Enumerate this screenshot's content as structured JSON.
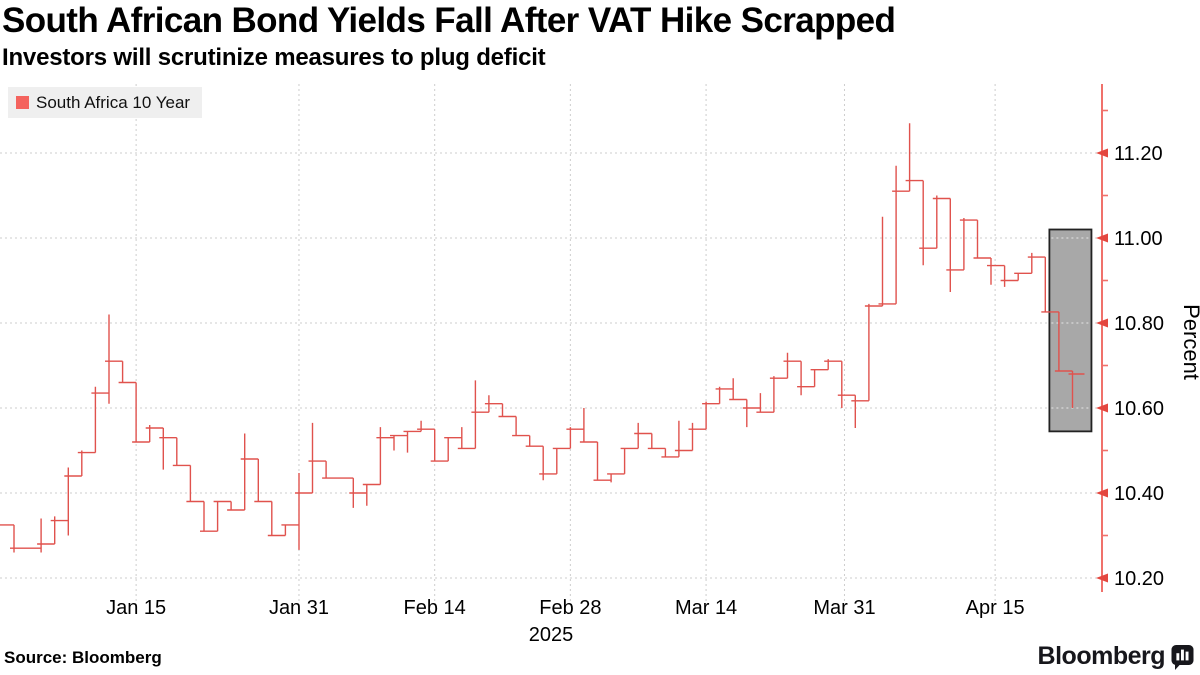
{
  "header": {
    "title": "South African Bond Yields Fall After VAT Hike Scrapped",
    "subtitle": "Investors will scrutinize measures to plug deficit"
  },
  "legend": {
    "label": "South Africa 10 Year"
  },
  "footer": {
    "source": "Source: Bloomberg",
    "brand": "Bloomberg"
  },
  "colors": {
    "line": "#e0524d",
    "axis": "#f0716b",
    "tick_arrow": "#e4473f",
    "grid": "#cdcdcd",
    "grid_in_box": "#e6e6e6",
    "box_fill": "#a8a8a8",
    "box_border": "#222222",
    "legend_bg": "#efefef",
    "swatch": "#f4635e",
    "text": "#000000"
  },
  "chart_data": {
    "type": "line",
    "subtype": "daily high-low step line",
    "title": "South African Bond Yields Fall After VAT Hike Scrapped",
    "ylabel": "Percent",
    "year_label": "2025",
    "legend": [
      "South Africa 10 Year"
    ],
    "grid": true,
    "y_axis": {
      "side": "right",
      "major_ticks": [
        11.2,
        11.0,
        10.8,
        10.6,
        10.4,
        10.2
      ],
      "minor_ticks": [
        11.3,
        11.1,
        10.9,
        10.7,
        10.5,
        10.3
      ],
      "top_value": 11.36,
      "bottom_value": 10.17
    },
    "x_ticks": [
      {
        "label": "Jan 15",
        "d": 9
      },
      {
        "label": "Jan 31",
        "d": 21
      },
      {
        "label": "Feb 14",
        "d": 31
      },
      {
        "label": "Feb 28",
        "d": 41
      },
      {
        "label": "Mar 14",
        "d": 51
      },
      {
        "label": "Mar 31",
        "d": 61.2
      },
      {
        "label": "Apr 15",
        "d": 72.3
      }
    ],
    "highlight_box": {
      "d_from": 76.3,
      "d_to": 79.4,
      "v_top": 11.02,
      "v_bottom": 10.545
    },
    "series": [
      {
        "name": "South Africa 10 Year",
        "unit": "Percent",
        "open": 10.325,
        "points": [
          {
            "c": 10.27,
            "l": 10.26
          },
          {
            "c": 10.27
          },
          {
            "c": 10.28,
            "h": 10.34,
            "l": 10.26
          },
          {
            "c": 10.335,
            "h": 10.345
          },
          {
            "c": 10.44,
            "h": 10.46,
            "l": 10.3
          },
          {
            "c": 10.495,
            "h": 10.5
          },
          {
            "c": 10.635,
            "h": 10.65
          },
          {
            "c": 10.71,
            "h": 10.82,
            "l": 10.61
          },
          {
            "c": 10.66
          },
          {
            "c": 10.52
          },
          {
            "c": 10.553,
            "h": 10.56
          },
          {
            "c": 10.53,
            "l": 10.455
          },
          {
            "c": 10.465
          },
          {
            "c": 10.38
          },
          {
            "c": 10.31
          },
          {
            "c": 10.38
          },
          {
            "c": 10.36
          },
          {
            "c": 10.48,
            "h": 10.54
          },
          {
            "c": 10.38
          },
          {
            "c": 10.3
          },
          {
            "c": 10.325
          },
          {
            "c": 10.4,
            "h": 10.447,
            "l": 10.266
          },
          {
            "c": 10.475,
            "h": 10.565
          },
          {
            "c": 10.435
          },
          {
            "c": 10.435
          },
          {
            "c": 10.4,
            "l": 10.365
          },
          {
            "c": 10.42,
            "l": 10.37
          },
          {
            "c": 10.53,
            "h": 10.555
          },
          {
            "c": 10.535,
            "l": 10.5
          },
          {
            "c": 10.545,
            "l": 10.495
          },
          {
            "c": 10.55,
            "h": 10.57
          },
          {
            "c": 10.475
          },
          {
            "c": 10.53
          },
          {
            "c": 10.505,
            "h": 10.555
          },
          {
            "c": 10.59,
            "h": 10.665
          },
          {
            "c": 10.61,
            "h": 10.63
          },
          {
            "c": 10.58
          },
          {
            "c": 10.535
          },
          {
            "c": 10.51
          },
          {
            "c": 10.445,
            "l": 10.43
          },
          {
            "c": 10.505
          },
          {
            "c": 10.55,
            "h": 10.555
          },
          {
            "c": 10.52,
            "h": 10.6
          },
          {
            "c": 10.43
          },
          {
            "c": 10.445,
            "l": 10.425
          },
          {
            "c": 10.505
          },
          {
            "c": 10.54,
            "h": 10.565
          },
          {
            "c": 10.505
          },
          {
            "c": 10.485
          },
          {
            "c": 10.5,
            "h": 10.57
          },
          {
            "c": 10.55,
            "h": 10.565
          },
          {
            "c": 10.61,
            "h": 10.615
          },
          {
            "c": 10.645,
            "h": 10.65
          },
          {
            "c": 10.62,
            "h": 10.67
          },
          {
            "c": 10.6,
            "l": 10.555
          },
          {
            "c": 10.59,
            "h": 10.635
          },
          {
            "c": 10.67,
            "h": 10.675
          },
          {
            "c": 10.71,
            "h": 10.73
          },
          {
            "c": 10.65,
            "l": 10.63
          },
          {
            "c": 10.69
          },
          {
            "c": 10.71,
            "h": 10.715
          },
          {
            "c": 10.63,
            "l": 10.6
          },
          {
            "c": 10.617,
            "l": 10.553
          },
          {
            "c": 10.84,
            "h": 10.845
          },
          {
            "c": 10.845,
            "h": 11.05
          },
          {
            "c": 11.11,
            "h": 11.17,
            "l": 10.845
          },
          {
            "c": 11.135,
            "h": 11.27
          },
          {
            "c": 10.976,
            "l": 10.936
          },
          {
            "c": 11.093,
            "h": 11.1
          },
          {
            "c": 10.925,
            "l": 10.873
          },
          {
            "c": 11.042,
            "h": 11.047
          },
          {
            "c": 10.953
          },
          {
            "c": 10.935,
            "l": 10.89
          },
          {
            "c": 10.9,
            "l": 10.885
          },
          {
            "c": 10.917
          },
          {
            "c": 10.955,
            "h": 10.965
          },
          {
            "c": 10.826
          },
          {
            "c": 10.687
          },
          {
            "c": 10.68,
            "l": 10.6
          }
        ]
      }
    ]
  }
}
